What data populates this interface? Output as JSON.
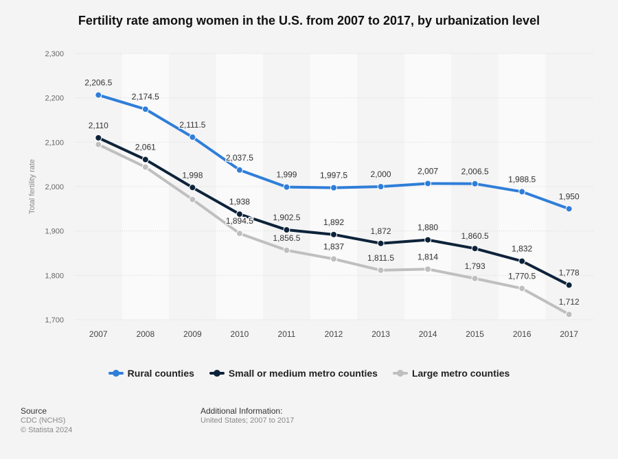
{
  "chart_data": {
    "type": "line",
    "title": "Fertility rate among women in the U.S. from 2007 to 2017, by urbanization level",
    "xlabel": "",
    "ylabel": "Total fertility rate",
    "categories": [
      "2007",
      "2008",
      "2009",
      "2010",
      "2011",
      "2012",
      "2013",
      "2014",
      "2015",
      "2016",
      "2017"
    ],
    "ylim": [
      1700,
      2300
    ],
    "yticks": [
      1700,
      1800,
      1900,
      2000,
      2100,
      2200,
      2300
    ],
    "ytick_labels": [
      "1,700",
      "1,800",
      "1,900",
      "2,000",
      "2,100",
      "2,200",
      "2,300"
    ],
    "series": [
      {
        "name": "Rural counties",
        "color": "#2f7ed8",
        "values": [
          2206.5,
          2174.5,
          2111.5,
          2037.5,
          1999,
          1997.5,
          2000,
          2007,
          2006.5,
          1988.5,
          1950
        ],
        "labels": [
          "2,206.5",
          "2,174.5",
          "2,111.5",
          "2,037.5",
          "1,999",
          "1,997.5",
          "2,000",
          "2,007",
          "2,006.5",
          "1,988.5",
          "1,950"
        ]
      },
      {
        "name": "Small or medium metro counties",
        "color": "#0d233a",
        "values": [
          2110,
          2061,
          1998,
          1938,
          1902.5,
          1892,
          1872,
          1880,
          1860.5,
          1832,
          1778
        ],
        "labels": [
          "2,110",
          "2,061",
          "1,998",
          "1,938",
          "1,902.5",
          "1,892",
          "1,872",
          "1,880",
          "1,860.5",
          "1,832",
          "1,778"
        ]
      },
      {
        "name": "Large metro counties",
        "color": "#bfbfbf",
        "values": [
          2095,
          2044,
          1971,
          1894.5,
          1856.5,
          1837,
          1811.5,
          1814,
          1793,
          1770.5,
          1712
        ],
        "labels": [
          "",
          "",
          "",
          "1,894.5",
          "1,856.5",
          "1,837",
          "1,811.5",
          "1,814",
          "1,793",
          "1,770.5",
          "1,712"
        ]
      }
    ],
    "grid": true,
    "legend": "bottom-center"
  },
  "footer": {
    "source_heading": "Source",
    "source_line1": "CDC (NCHS)",
    "source_line2": "© Statista 2024",
    "info_heading": "Additional Information:",
    "info_text": "United States; 2007 to 2017"
  }
}
